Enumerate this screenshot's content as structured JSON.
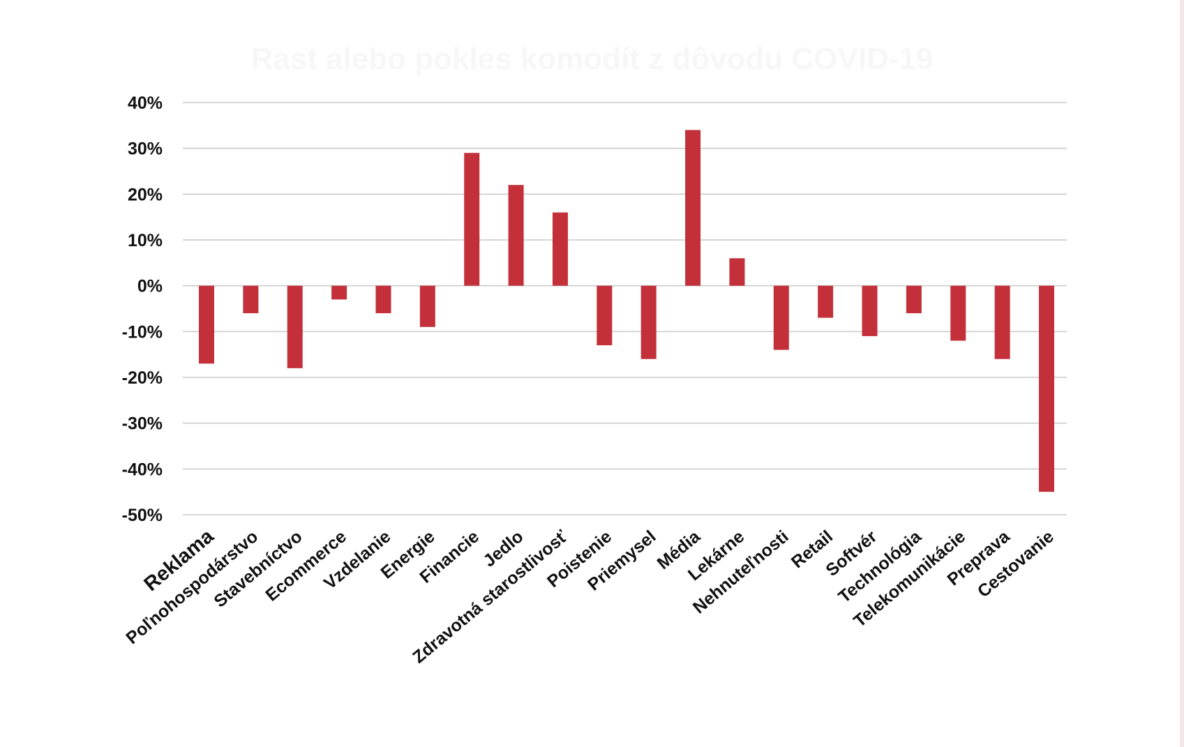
{
  "chart_data": {
    "type": "bar",
    "title": "Rast alebo pokles komodít z dôvodu COVID-19",
    "xlabel": "",
    "ylabel": "",
    "ylim": [
      -50,
      40
    ],
    "yticks": [
      40,
      30,
      20,
      10,
      0,
      -10,
      -20,
      -30,
      -40,
      -50
    ],
    "ytick_labels": [
      "40%",
      "30%",
      "20%",
      "10%",
      "0%",
      "-10%",
      "-20%",
      "-30%",
      "-40%",
      "-50%"
    ],
    "grid": true,
    "bar_color": "#c3303a",
    "categories": [
      "Reklama",
      "Poľnohospodárstvo",
      "Stavebníctvo",
      "Ecommerce",
      "Vzdelanie",
      "Energie",
      "Financie",
      "Jedlo",
      "Zdravotná starostlivosť",
      "Poistenie",
      "Priemysel",
      "Média",
      "Lekárne",
      "Nehnuteľnosti",
      "Retail",
      "Softvér",
      "Technológia",
      "Telekomunikácie",
      "Preprava",
      "Cestovanie"
    ],
    "values": [
      -17,
      -6,
      -18,
      -3,
      -6,
      -9,
      29,
      22,
      16,
      -13,
      -16,
      34,
      6,
      -14,
      -7,
      -11,
      -6,
      -12,
      -16,
      -45
    ]
  }
}
